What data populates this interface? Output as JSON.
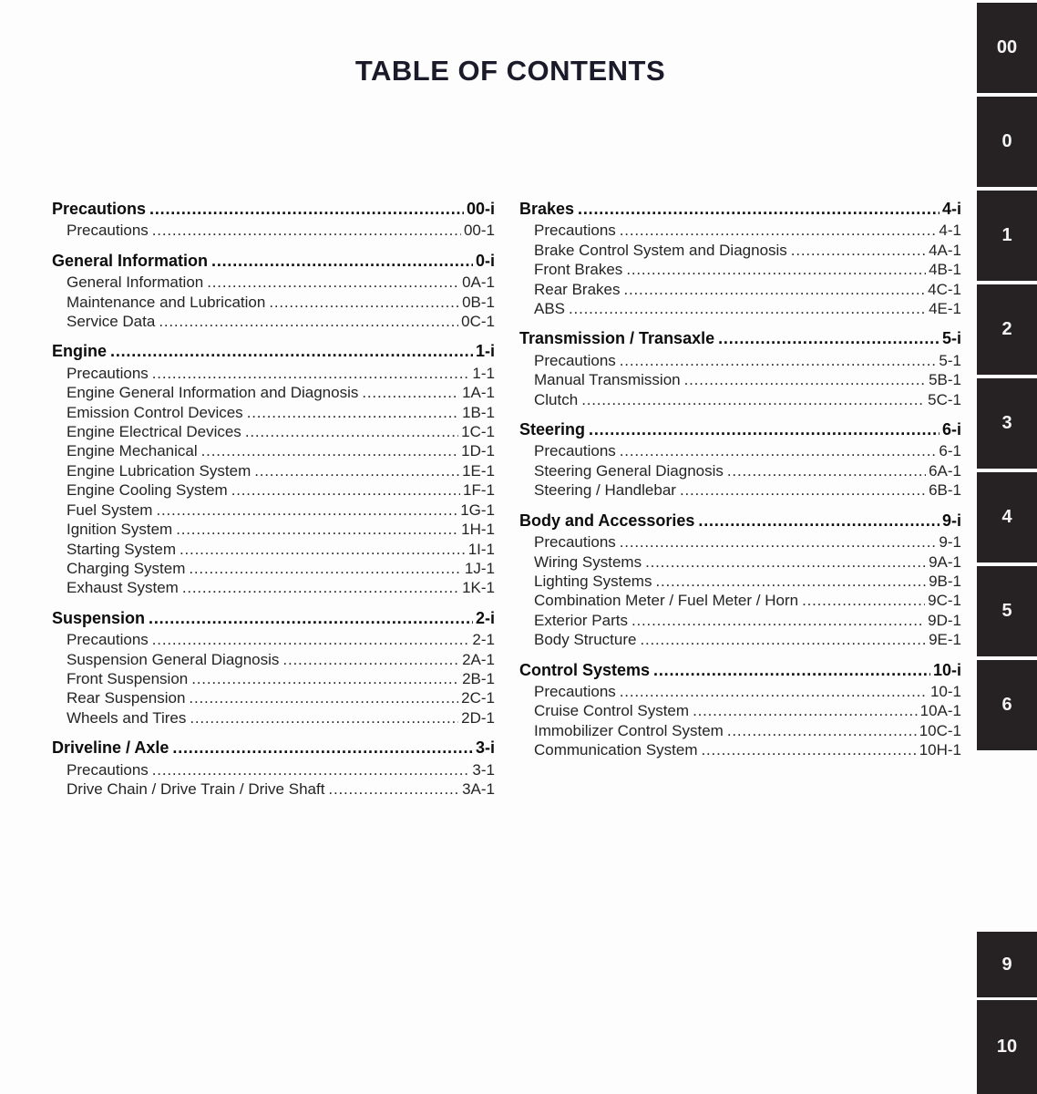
{
  "title": "TABLE OF CONTENTS",
  "columns": [
    {
      "sections": [
        {
          "title": "Precautions",
          "page": "00-i",
          "items": [
            {
              "label": "Precautions",
              "page": "00-1"
            }
          ]
        },
        {
          "title": "General Information",
          "page": "0-i",
          "items": [
            {
              "label": "General Information",
              "page": "0A-1"
            },
            {
              "label": "Maintenance and Lubrication",
              "page": "0B-1"
            },
            {
              "label": "Service Data",
              "page": "0C-1"
            }
          ]
        },
        {
          "title": "Engine",
          "page": "1-i",
          "items": [
            {
              "label": "Precautions",
              "page": "1-1"
            },
            {
              "label": "Engine General Information and Diagnosis",
              "page": "1A-1"
            },
            {
              "label": "Emission Control Devices",
              "page": "1B-1"
            },
            {
              "label": "Engine Electrical Devices",
              "page": "1C-1"
            },
            {
              "label": "Engine Mechanical",
              "page": "1D-1"
            },
            {
              "label": "Engine Lubrication System",
              "page": "1E-1"
            },
            {
              "label": "Engine Cooling System",
              "page": "1F-1"
            },
            {
              "label": "Fuel System",
              "page": "1G-1"
            },
            {
              "label": "Ignition System",
              "page": "1H-1"
            },
            {
              "label": "Starting System",
              "page": "1I-1"
            },
            {
              "label": "Charging System",
              "page": "1J-1"
            },
            {
              "label": "Exhaust System",
              "page": "1K-1"
            }
          ]
        },
        {
          "title": "Suspension",
          "page": "2-i",
          "items": [
            {
              "label": "Precautions",
              "page": "2-1"
            },
            {
              "label": "Suspension General Diagnosis",
              "page": "2A-1"
            },
            {
              "label": "Front Suspension",
              "page": "2B-1"
            },
            {
              "label": "Rear Suspension",
              "page": "2C-1"
            },
            {
              "label": "Wheels and Tires",
              "page": "2D-1"
            }
          ]
        },
        {
          "title": "Driveline / Axle",
          "page": "3-i",
          "items": [
            {
              "label": "Precautions",
              "page": "3-1"
            },
            {
              "label": "Drive Chain / Drive Train / Drive Shaft",
              "page": "3A-1"
            }
          ]
        }
      ]
    },
    {
      "sections": [
        {
          "title": "Brakes",
          "page": "4-i",
          "items": [
            {
              "label": "Precautions",
              "page": "4-1"
            },
            {
              "label": "Brake Control System and Diagnosis",
              "page": "4A-1"
            },
            {
              "label": "Front Brakes",
              "page": "4B-1"
            },
            {
              "label": "Rear Brakes",
              "page": "4C-1"
            },
            {
              "label": "ABS",
              "page": "4E-1"
            }
          ]
        },
        {
          "title": "Transmission / Transaxle",
          "page": "5-i",
          "items": [
            {
              "label": "Precautions",
              "page": "5-1"
            },
            {
              "label": "Manual Transmission",
              "page": "5B-1"
            },
            {
              "label": "Clutch",
              "page": "5C-1"
            }
          ]
        },
        {
          "title": "Steering",
          "page": "6-i",
          "items": [
            {
              "label": "Precautions",
              "page": "6-1"
            },
            {
              "label": "Steering General Diagnosis",
              "page": "6A-1"
            },
            {
              "label": "Steering / Handlebar",
              "page": "6B-1"
            }
          ]
        },
        {
          "title": "Body and Accessories",
          "page": "9-i",
          "items": [
            {
              "label": "Precautions",
              "page": "9-1"
            },
            {
              "label": "Wiring Systems",
              "page": "9A-1"
            },
            {
              "label": "Lighting Systems",
              "page": "9B-1"
            },
            {
              "label": "Combination Meter / Fuel Meter / Horn",
              "page": "9C-1"
            },
            {
              "label": "Exterior Parts",
              "page": "9D-1"
            },
            {
              "label": "Body Structure",
              "page": "9E-1"
            }
          ]
        },
        {
          "title": "Control Systems",
          "page": "10-i",
          "items": [
            {
              "label": "Precautions",
              "page": "10-1"
            },
            {
              "label": "Cruise Control System",
              "page": "10A-1"
            },
            {
              "label": "Immobilizer Control System",
              "page": "10C-1"
            },
            {
              "label": "Communication System",
              "page": "10H-1"
            }
          ]
        }
      ]
    }
  ],
  "sidebar": {
    "tabs": [
      {
        "label": "00"
      },
      {
        "label": "0"
      },
      {
        "label": "1"
      },
      {
        "label": "2"
      },
      {
        "label": "3"
      },
      {
        "label": "4"
      },
      {
        "label": "5"
      },
      {
        "label": "6"
      },
      {
        "label": "9"
      },
      {
        "label": "10"
      }
    ]
  },
  "colors": {
    "page_background": "#fdfdfd",
    "title_text": "#1a1a2b",
    "heading_text": "#0c0c0c",
    "body_text": "#242424",
    "tab_background": "#262223",
    "tab_text": "#f4f4f4"
  }
}
